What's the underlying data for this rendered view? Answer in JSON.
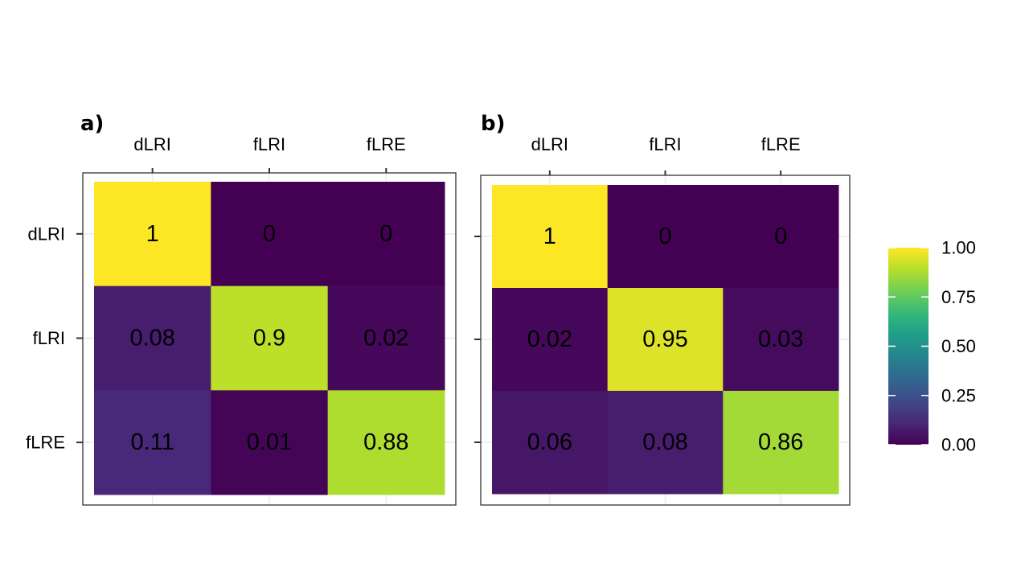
{
  "chart_data": [
    {
      "type": "heatmap",
      "tag": "a)",
      "x_categories": [
        "dLRI",
        "fLRI",
        "fLRE"
      ],
      "y_categories": [
        "dLRI",
        "fLRI",
        "fLRE"
      ],
      "x_axis_position": "top",
      "values": [
        [
          1,
          0,
          0
        ],
        [
          0.08,
          0.9,
          0.02
        ],
        [
          0.11,
          0.01,
          0.88
        ]
      ],
      "labels": [
        [
          "1",
          "0",
          "0"
        ],
        [
          "0.08",
          "0.9",
          "0.02"
        ],
        [
          "0.11",
          "0.01",
          "0.88"
        ]
      ],
      "grid": true
    },
    {
      "type": "heatmap",
      "tag": "b)",
      "x_categories": [
        "dLRI",
        "fLRI",
        "fLRE"
      ],
      "y_categories": [
        "",
        "",
        ""
      ],
      "x_axis_position": "top",
      "values": [
        [
          1,
          0,
          0
        ],
        [
          0.02,
          0.95,
          0.03
        ],
        [
          0.06,
          0.08,
          0.86
        ]
      ],
      "labels": [
        [
          "1",
          "0",
          "0"
        ],
        [
          "0.02",
          "0.95",
          "0.03"
        ],
        [
          "0.06",
          "0.08",
          "0.86"
        ]
      ],
      "grid": true
    }
  ],
  "legend": {
    "placement": "right",
    "colormap": "viridis",
    "range": [
      0,
      1
    ],
    "ticks": [
      0,
      0.25,
      0.5,
      0.75,
      1
    ],
    "tick_labels": [
      "0.00",
      "0.25",
      "0.50",
      "0.75",
      "1.00"
    ]
  },
  "colors": {
    "viridis": [
      "#440154",
      "#482878",
      "#3e4989",
      "#31688e",
      "#26828e",
      "#1f9e89",
      "#35b779",
      "#6ece58",
      "#b5de2b",
      "#fde725"
    ],
    "panel_border": "#333333",
    "grid": "#ebebeb",
    "tick": "#333333",
    "cell_text": "#000000"
  }
}
